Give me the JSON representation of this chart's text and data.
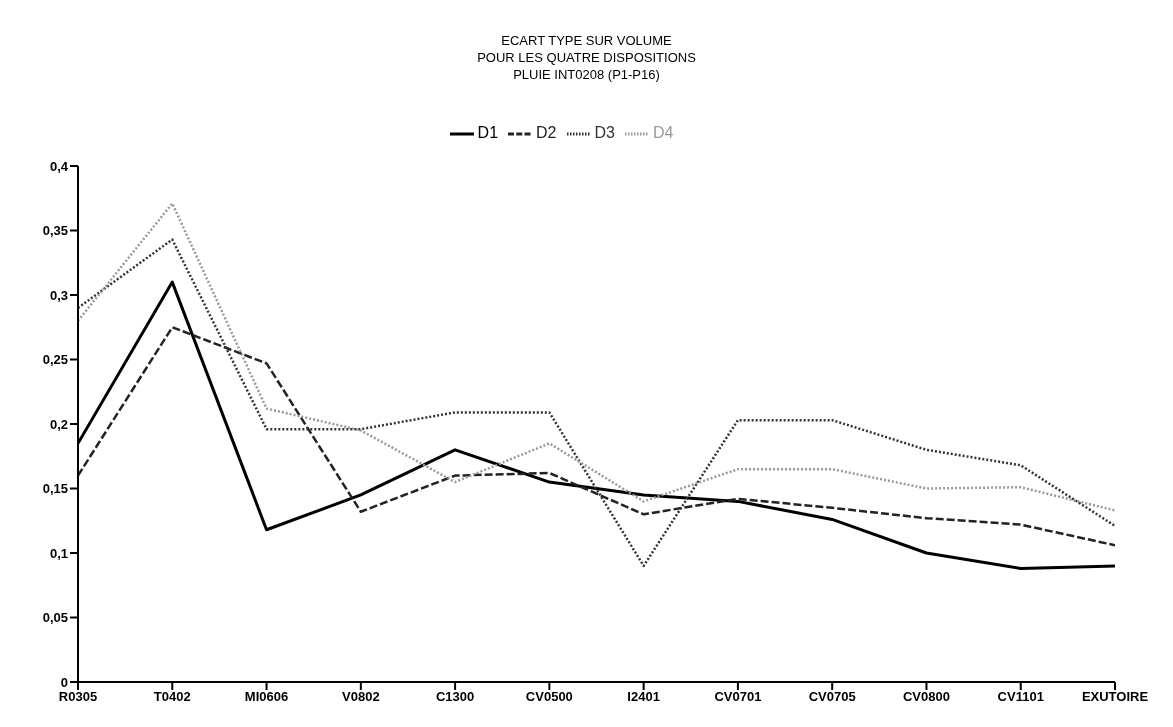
{
  "chart_data": {
    "type": "line",
    "title": "ECART TYPE SUR VOLUME\nPOUR LES QUATRE DISPOSITIONS\nPLUIE INT0208 (P1-P16)",
    "categories": [
      "R0305",
      "T0402",
      "MI0606",
      "V0802",
      "C1300",
      "CV0500",
      "I2401",
      "CV0701",
      "CV0705",
      "CV0800",
      "CV1101",
      "EXUTOIRE"
    ],
    "series": [
      {
        "name": "D1",
        "color": "#000000",
        "line_style": "solid",
        "values": [
          0.185,
          0.31,
          0.118,
          0.145,
          0.18,
          0.155,
          0.145,
          0.14,
          0.126,
          0.1,
          0.088,
          0.09
        ]
      },
      {
        "name": "D2",
        "color": "#222222",
        "line_style": "dashed",
        "values": [
          0.16,
          0.275,
          0.247,
          0.132,
          0.16,
          0.162,
          0.13,
          0.142,
          0.135,
          0.127,
          0.122,
          0.106
        ]
      },
      {
        "name": "D3",
        "color": "#333333",
        "line_style": "dotted",
        "values": [
          0.29,
          0.343,
          0.196,
          0.196,
          0.209,
          0.209,
          0.09,
          0.203,
          0.203,
          0.18,
          0.168,
          0.121
        ]
      },
      {
        "name": "D4",
        "color": "#999999",
        "line_style": "dotted",
        "values": [
          0.28,
          0.371,
          0.212,
          0.195,
          0.155,
          0.185,
          0.14,
          0.165,
          0.165,
          0.15,
          0.151,
          0.133
        ]
      }
    ],
    "ylim": [
      0,
      0.4
    ],
    "yticks": [
      {
        "value": 0,
        "label": "0"
      },
      {
        "value": 0.05,
        "label": "0,05"
      },
      {
        "value": 0.1,
        "label": "0,1"
      },
      {
        "value": 0.15,
        "label": "0,15"
      },
      {
        "value": 0.2,
        "label": "0,2"
      },
      {
        "value": 0.25,
        "label": "0,25"
      },
      {
        "value": 0.3,
        "label": "0,3"
      },
      {
        "value": 0.35,
        "label": "0,35"
      },
      {
        "value": 0.4,
        "label": "0,4"
      }
    ],
    "grid": false,
    "legend": "top",
    "marker": "none"
  }
}
